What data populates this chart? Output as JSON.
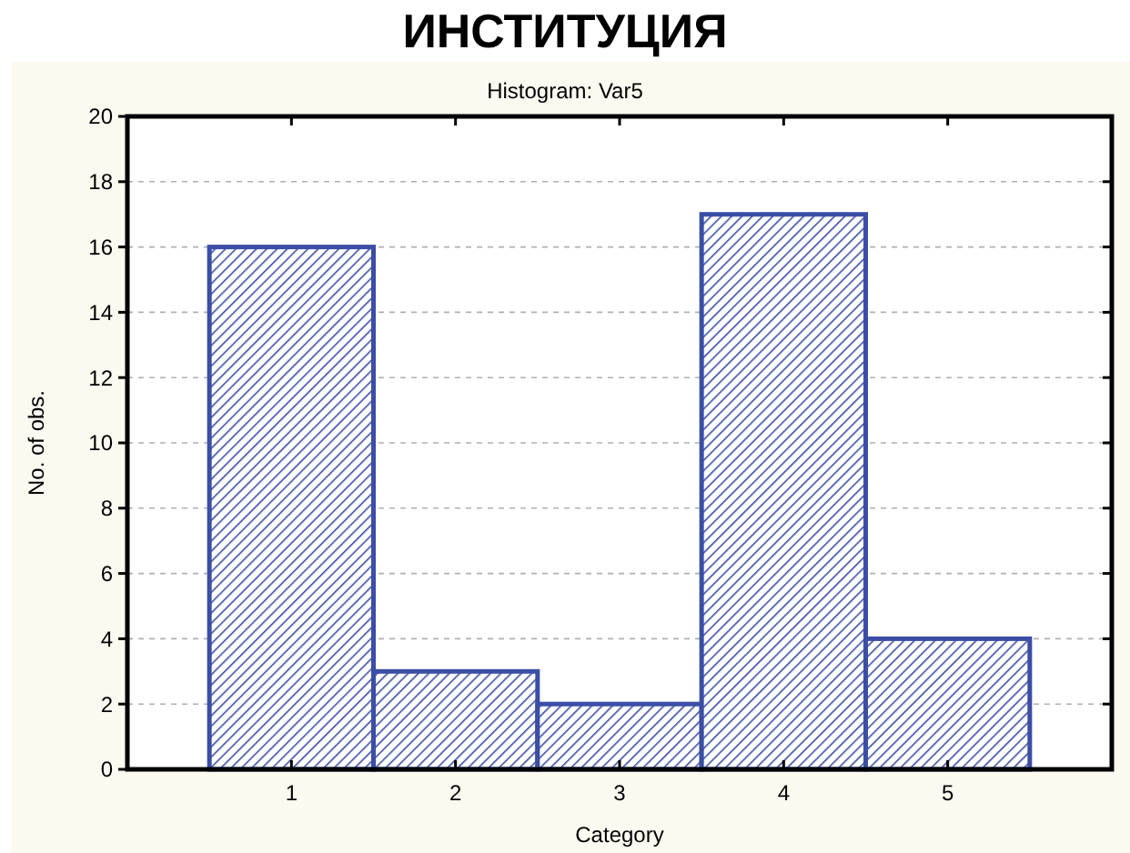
{
  "chart_data": {
    "type": "histogram",
    "title": "ИНСТИТУЦИЯ",
    "subtitle": "Histogram: Var5",
    "xlabel": "Category",
    "ylabel": "No. of obs.",
    "bins": [
      0.5,
      1.5,
      2.5,
      3.5,
      4.5,
      5.5
    ],
    "values": [
      16,
      3,
      2,
      17,
      4
    ],
    "color": "#3b4ea6",
    "xlim": [
      0,
      6
    ],
    "xticks": [
      1,
      2,
      3,
      4,
      5
    ],
    "ylim": [
      0,
      20
    ],
    "yticks": [
      0,
      2,
      4,
      6,
      8,
      10,
      12,
      14,
      16,
      18,
      20
    ],
    "grid": "y"
  }
}
